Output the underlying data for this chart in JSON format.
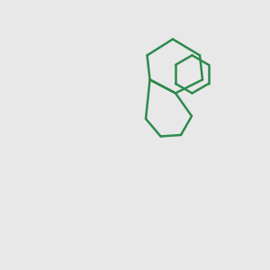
{
  "bg_color": "#e8e8e8",
  "bond_color": "#2d8a4e",
  "bond_width": 1.8,
  "atom_colors": {
    "O": "#ff0000",
    "N": "#2222cc",
    "Cl": "#2d8a4e",
    "C": "#2d8a4e",
    "H": "#666666"
  },
  "font_size": 10,
  "fig_width": 3.0,
  "fig_height": 3.0,
  "dpi": 100
}
